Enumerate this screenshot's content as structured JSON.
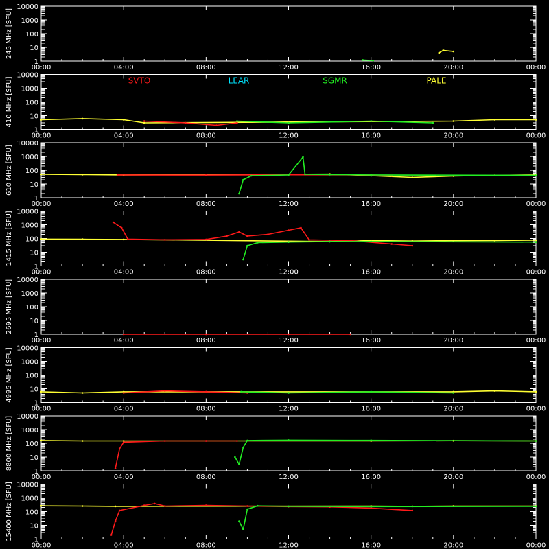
{
  "colors": {
    "background": "#000000",
    "axes": "#ffffff",
    "SVTO": "#ff1a1a",
    "LEAR": "#00e5ff",
    "SGMR": "#22ee22",
    "PALE": "#ffff33"
  },
  "chart_data": {
    "type": "line",
    "xlim": [
      "00:00",
      "24:00"
    ],
    "x_ticks": [
      "00:00",
      "04:00",
      "08:00",
      "12:00",
      "16:00",
      "20:00",
      "00:00"
    ],
    "y_scale": "log",
    "ylim": [
      1,
      10000
    ],
    "y_ticks": [
      "1",
      "10",
      "100",
      "1000",
      "10000"
    ],
    "legend": [
      "SVTO",
      "LEAR",
      "SGMR",
      "PALE"
    ],
    "legend_position": "top of second panel",
    "panels": [
      {
        "ylabel": "245 MHz [SFU]",
        "series": [
          {
            "station": "SGMR",
            "points": [
              [
                15.6,
                1.2
              ],
              [
                16.1,
                1.1
              ]
            ]
          },
          {
            "station": "PALE",
            "points": [
              [
                19.3,
                4
              ],
              [
                19.5,
                6
              ],
              [
                20.0,
                5
              ]
            ]
          }
        ]
      },
      {
        "ylabel": "410 MHz [SFU]",
        "series": [
          {
            "station": "PALE",
            "points": [
              [
                0,
                5
              ],
              [
                2,
                6
              ],
              [
                4,
                5
              ],
              [
                5,
                3
              ],
              [
                20,
                4
              ],
              [
                22,
                5
              ],
              [
                24,
                5
              ]
            ]
          },
          {
            "station": "SVTO",
            "points": [
              [
                5,
                4
              ],
              [
                7,
                3
              ],
              [
                8.5,
                2
              ],
              [
                9.5,
                3
              ]
            ]
          },
          {
            "station": "SGMR",
            "points": [
              [
                9.5,
                4
              ],
              [
                12,
                3
              ],
              [
                16,
                4
              ],
              [
                19,
                3
              ]
            ]
          }
        ]
      },
      {
        "ylabel": "610 MHz [SFU]",
        "series": [
          {
            "station": "PALE",
            "points": [
              [
                0,
                50
              ],
              [
                2,
                48
              ],
              [
                4,
                45
              ],
              [
                14,
                52
              ],
              [
                16,
                40
              ],
              [
                18,
                30
              ],
              [
                20,
                38
              ],
              [
                22,
                42
              ],
              [
                24,
                45
              ]
            ]
          },
          {
            "station": "SVTO",
            "points": [
              [
                3.7,
                45
              ],
              [
                8,
                44
              ],
              [
                12,
                46
              ],
              [
                16,
                45
              ],
              [
                17,
                40
              ]
            ]
          },
          {
            "station": "SGMR",
            "points": [
              [
                9.6,
                2
              ],
              [
                9.8,
                20
              ],
              [
                10.2,
                40
              ],
              [
                12,
                45
              ],
              [
                12.7,
                900
              ],
              [
                12.8,
                50
              ],
              [
                14,
                48
              ],
              [
                16,
                45
              ],
              [
                24,
                42
              ]
            ]
          }
        ]
      },
      {
        "ylabel": "1415 MHz [SFU]",
        "series": [
          {
            "station": "PALE",
            "points": [
              [
                0,
                90
              ],
              [
                2,
                88
              ],
              [
                4,
                85
              ],
              [
                14,
                60
              ],
              [
                16,
                70
              ],
              [
                18,
                65
              ],
              [
                20,
                70
              ],
              [
                22,
                72
              ],
              [
                24,
                75
              ]
            ]
          },
          {
            "station": "SVTO",
            "points": [
              [
                3.5,
                1500
              ],
              [
                3.9,
                600
              ],
              [
                4.2,
                90
              ],
              [
                6,
                80
              ],
              [
                8,
                85
              ],
              [
                9,
                150
              ],
              [
                9.6,
                300
              ],
              [
                10,
                150
              ],
              [
                11,
                200
              ],
              [
                12,
                400
              ],
              [
                12.6,
                600
              ],
              [
                13,
                80
              ],
              [
                15,
                70
              ],
              [
                17,
                40
              ],
              [
                18,
                30
              ]
            ]
          },
          {
            "station": "SGMR",
            "points": [
              [
                9.8,
                3
              ],
              [
                10.0,
                30
              ],
              [
                10.5,
                50
              ],
              [
                12,
                55
              ],
              [
                14,
                60
              ],
              [
                16,
                60
              ],
              [
                24,
                55
              ]
            ]
          }
        ]
      },
      {
        "ylabel": "2695 MHz [SFU]",
        "series": [
          {
            "station": "SVTO",
            "points": [
              [
                4,
                1
              ],
              [
                8,
                1
              ],
              [
                12,
                1
              ],
              [
                15,
                1
              ]
            ]
          }
        ]
      },
      {
        "ylabel": "4995 MHz [SFU]",
        "series": [
          {
            "station": "PALE",
            "points": [
              [
                0,
                6
              ],
              [
                2,
                5
              ],
              [
                4,
                6
              ],
              [
                20,
                6
              ],
              [
                22,
                7
              ],
              [
                24,
                6
              ]
            ]
          },
          {
            "station": "SVTO",
            "points": [
              [
                4,
                5
              ],
              [
                6,
                7
              ],
              [
                8,
                6
              ],
              [
                10,
                5
              ]
            ]
          },
          {
            "station": "SGMR",
            "points": [
              [
                9.7,
                6
              ],
              [
                12,
                5
              ],
              [
                16,
                6
              ],
              [
                20,
                5
              ]
            ]
          }
        ]
      },
      {
        "ylabel": "8800 MHz [SFU]",
        "series": [
          {
            "station": "PALE",
            "points": [
              [
                0,
                160
              ],
              [
                2,
                150
              ],
              [
                4,
                150
              ],
              [
                16,
                150
              ],
              [
                20,
                155
              ],
              [
                24,
                150
              ]
            ]
          },
          {
            "station": "SVTO",
            "points": [
              [
                3.6,
                1.5
              ],
              [
                3.8,
                40
              ],
              [
                4.0,
                120
              ],
              [
                6,
                150
              ],
              [
                8,
                150
              ],
              [
                9.5,
                150
              ]
            ]
          },
          {
            "station": "SGMR",
            "points": [
              [
                9.4,
                10
              ],
              [
                9.6,
                3
              ],
              [
                9.8,
                50
              ],
              [
                10.0,
                160
              ],
              [
                12,
                170
              ],
              [
                16,
                165
              ],
              [
                24,
                150
              ]
            ]
          }
        ]
      },
      {
        "ylabel": "15400 MHz [SFU]",
        "series": [
          {
            "station": "PALE",
            "points": [
              [
                0,
                260
              ],
              [
                2,
                250
              ],
              [
                3.6,
                240
              ],
              [
                16,
                250
              ],
              [
                18,
                240
              ],
              [
                20,
                250
              ],
              [
                24,
                250
              ]
            ]
          },
          {
            "station": "SVTO",
            "points": [
              [
                3.4,
                2
              ],
              [
                3.6,
                20
              ],
              [
                3.8,
                120
              ],
              [
                5,
                280
              ],
              [
                5.5,
                380
              ],
              [
                6,
                250
              ],
              [
                8,
                280
              ],
              [
                10,
                250
              ],
              [
                12,
                230
              ],
              [
                14,
                220
              ],
              [
                16,
                180
              ],
              [
                18,
                120
              ]
            ]
          },
          {
            "station": "SGMR",
            "points": [
              [
                9.6,
                20
              ],
              [
                9.8,
                5
              ],
              [
                10.0,
                150
              ],
              [
                10.5,
                260
              ],
              [
                12,
                240
              ],
              [
                16,
                230
              ],
              [
                24,
                240
              ]
            ]
          }
        ]
      }
    ]
  }
}
